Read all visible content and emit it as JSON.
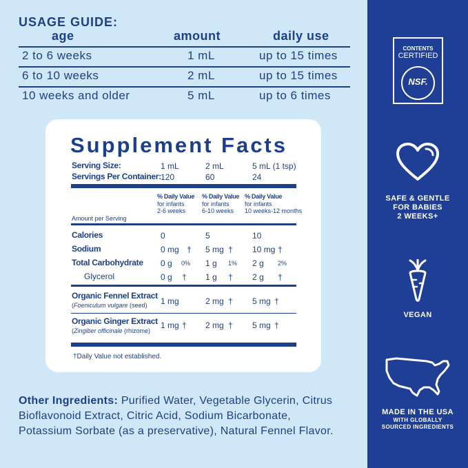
{
  "usage": {
    "title": "USAGE GUIDE:",
    "headers": {
      "age": "age",
      "amount": "amount",
      "daily": "daily use"
    },
    "rows": [
      {
        "age": "2 to 6 weeks",
        "amount": "1 mL",
        "daily": "up to 15 times"
      },
      {
        "age": "6 to 10 weeks",
        "amount": "2 mL",
        "daily": "up to 15 times"
      },
      {
        "age": "10 weeks and older",
        "amount": "5 mL",
        "daily": "up to 6 times"
      }
    ]
  },
  "facts": {
    "title": "Supplement Facts",
    "serving_size_label": "Serving Size:",
    "serving_sizes": [
      "1 mL",
      "2 mL",
      "5 mL (1 tsp)"
    ],
    "servings_label": "Servings Per Container:",
    "servings": [
      "120",
      "60",
      "24"
    ],
    "amount_per_serving": "Amount per Serving",
    "dv_headers": [
      {
        "title": "% Daily Value",
        "line1": "for infants",
        "line2": "2-6 weeks"
      },
      {
        "title": "% Daily Value",
        "line1": "for infants",
        "line2": "6-10 weeks"
      },
      {
        "title": "% Daily Value",
        "line1": "for infants",
        "line2": "10 weeks-12 months"
      }
    ],
    "nutrients": [
      {
        "name": "Calories",
        "values": [
          "0",
          "5",
          "10"
        ],
        "dv": [
          "",
          "",
          ""
        ]
      },
      {
        "name": "Sodium",
        "values": [
          "0 mg",
          "5 mg",
          "10 mg"
        ],
        "dv": [
          "†",
          "†",
          "†"
        ]
      },
      {
        "name": "Total Carbohydrate",
        "values": [
          "0 g",
          "1 g",
          "2 g"
        ],
        "dv": [
          "0%",
          "1%",
          "2%"
        ]
      },
      {
        "name": "Glycerol",
        "values": [
          "0 g",
          "1 g",
          "2 g"
        ],
        "dv": [
          "†",
          "†",
          "†"
        ]
      }
    ],
    "extracts": [
      {
        "name": "Organic Fennel Extract",
        "latin": "Foeniculum vulgare",
        "part": " (seed)",
        "values": [
          "1 mg",
          "2 mg",
          "5 mg"
        ],
        "dv": [
          "†",
          "†",
          "†"
        ]
      },
      {
        "name": "Organic Ginger Extract",
        "latin": "Zingiber officinale",
        "part": " (rhizome)",
        "values": [
          "1 mg",
          "2 mg",
          "5 mg"
        ],
        "dv": [
          "†",
          "†",
          "†"
        ]
      }
    ],
    "footnote": "†Daily Value not established."
  },
  "other": {
    "label": "Other Ingredients:",
    "text": " Purified Water, Vegetable Glycerin, Citrus Bioflavonoid Extract, Citric Acid, Sodium Bicarbonate, Potassium Sorbate (as a preservative), Natural Fennel Flavor."
  },
  "sidebar": {
    "nsf_top": "CONTENTS",
    "nsf_certified": "CERTIFIED",
    "nsf_mark": "NSF.",
    "safe_line1": "SAFE & GENTLE",
    "safe_line2": "FOR BABIES",
    "safe_line3": "2 WEEKS+",
    "vegan": "VEGAN",
    "usa_line1": "MADE IN THE USA",
    "usa_line2": "WITH GLOBALLY",
    "usa_line3": "SOURCED INGREDIENTS"
  },
  "colors": {
    "navy": "#1c3f8a",
    "light_blue": "#cfe7f6",
    "sidebar_blue": "#1f3e95",
    "white": "#ffffff"
  },
  "icons": [
    "nsf-certified-icon",
    "heart-icon",
    "carrot-icon",
    "usa-map-icon"
  ]
}
